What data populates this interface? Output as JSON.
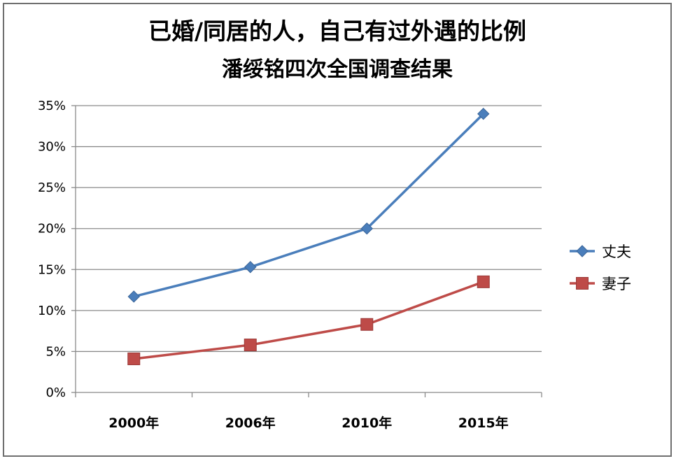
{
  "chart_data": {
    "type": "line",
    "title": "已婚/同居的人，自己有过外遇的比例",
    "subtitle": "潘绥铭四次全国调查结果",
    "categories": [
      "2000年",
      "2006年",
      "2010年",
      "2015年"
    ],
    "y_ticks": [
      "0%",
      "5%",
      "10%",
      "15%",
      "20%",
      "25%",
      "30%",
      "35%"
    ],
    "ylim": [
      0,
      35
    ],
    "y_step": 5,
    "grid": true,
    "legend_position": "right",
    "series": [
      {
        "name": "丈夫",
        "values": [
          11.7,
          15.3,
          20.0,
          34.0
        ],
        "color": "#4a7ebb",
        "marker": "diamond"
      },
      {
        "name": "妻子",
        "values": [
          4.1,
          5.8,
          8.3,
          13.5
        ],
        "color": "#be4b48",
        "marker": "square"
      }
    ]
  }
}
